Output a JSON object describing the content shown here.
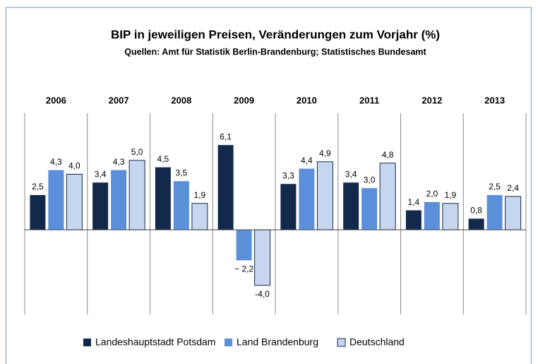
{
  "chart_data": {
    "type": "bar",
    "title": "BIP in jeweiligen Preisen, Veränderungen zum Vorjahr (%)",
    "subtitle": "Quellen: Amt für Statistik Berlin-Brandenburg;  Statistisches Bundesamt",
    "categories": [
      "2006",
      "2007",
      "2008",
      "2009",
      "2010",
      "2011",
      "2012",
      "2013"
    ],
    "series": [
      {
        "name": "Landeshauptstadt Potsdam",
        "color": "#13294b",
        "values": [
          2.5,
          3.4,
          4.5,
          6.1,
          3.3,
          3.4,
          1.4,
          0.8
        ],
        "value_labels": [
          "2,5",
          "3,4",
          "4,5",
          "6,1",
          "3,3",
          "3,4",
          "1,4",
          "0,8"
        ]
      },
      {
        "name": "Land Brandenburg",
        "color": "#5b8fd9",
        "values": [
          4.3,
          4.3,
          3.5,
          -2.2,
          4.4,
          3.0,
          2.0,
          2.5
        ],
        "value_labels": [
          "4,3",
          "4,3",
          "3,5",
          "− 2,2",
          "4,4",
          "3,0",
          "2,0",
          "2,5"
        ]
      },
      {
        "name": "Deutschland",
        "color": "#c5d6ee",
        "values": [
          4.0,
          5.0,
          1.9,
          -4.0,
          4.9,
          4.8,
          1.9,
          2.4
        ],
        "value_labels": [
          "4,0",
          "5,0",
          "1,9",
          "-4,0",
          "4,9",
          "4,8",
          "1,9",
          "2,4"
        ]
      }
    ],
    "ylim": [
      -6.1,
      8.4
    ]
  }
}
